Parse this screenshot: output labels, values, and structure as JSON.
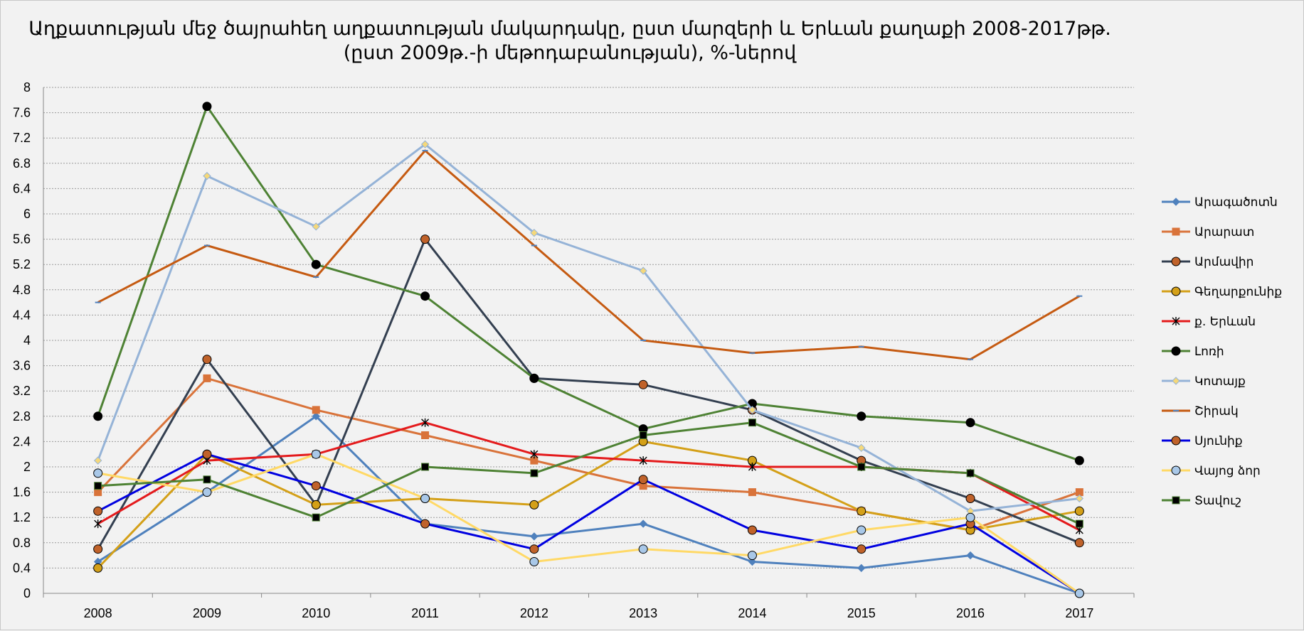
{
  "chart_data": {
    "type": "line",
    "title": "Աղքատության մեջ ծայրահեղ աղքատության մակարդակը, ըստ մարզերի և Երևան քաղաքի 2008-2017թթ.",
    "subtitle": "(ըստ 2009թ.-ի մեթոդաբանության), %-ներով",
    "x": [
      "2008",
      "2009",
      "2010",
      "2011",
      "2012",
      "2013",
      "2014",
      "2015",
      "2016",
      "2017"
    ],
    "y_ticks": [
      "0",
      "0.4",
      "0.8",
      "1.2",
      "1.6",
      "2",
      "2.4",
      "2.8",
      "3.2",
      "3.6",
      "4",
      "4.4",
      "4.8",
      "5.2",
      "5.6",
      "6",
      "6.4",
      "6.8",
      "7.2",
      "7.6",
      "8"
    ],
    "ylim": [
      0,
      8
    ],
    "grid": true,
    "legend_position": "right",
    "series": [
      {
        "name": "Արագածոտն",
        "color": "#4f81bd",
        "marker": "diamond",
        "marker_fill": "#4f81bd",
        "values": [
          0.5,
          1.6,
          2.8,
          1.1,
          0.9,
          1.1,
          0.5,
          0.4,
          0.6,
          0.0
        ]
      },
      {
        "name": "Արարատ",
        "color": "#d9733a",
        "marker": "square",
        "marker_fill": "#d9733a",
        "values": [
          1.6,
          3.4,
          2.9,
          2.5,
          2.1,
          1.7,
          1.6,
          1.3,
          1.0,
          1.6
        ]
      },
      {
        "name": "Արմավիր",
        "color": "#333f50",
        "marker": "circle",
        "marker_fill": "#c0622a",
        "values": [
          0.7,
          3.7,
          1.4,
          5.6,
          3.4,
          3.3,
          2.9,
          2.1,
          1.5,
          0.8
        ]
      },
      {
        "name": "Գեղարքունիք",
        "color": "#d4a018",
        "marker": "circle",
        "marker_fill": "#d4a018",
        "values": [
          0.4,
          2.2,
          1.4,
          1.5,
          1.4,
          2.4,
          2.1,
          1.3,
          1.0,
          1.3
        ]
      },
      {
        "name": "ք. Երևան",
        "color": "#e41a1c",
        "marker": "star",
        "marker_fill": "#000000",
        "values": [
          1.1,
          2.1,
          2.2,
          2.7,
          2.2,
          2.1,
          2.0,
          2.0,
          1.9,
          1.0
        ]
      },
      {
        "name": "Լոռի",
        "color": "#4e8234",
        "marker": "circle",
        "marker_fill": "#000000",
        "values": [
          2.8,
          7.7,
          5.2,
          4.7,
          3.4,
          2.6,
          3.0,
          2.8,
          2.7,
          2.1
        ]
      },
      {
        "name": "Կոտայք",
        "color": "#95b3d7",
        "marker": "diamond",
        "marker_fill": "#f5d87a",
        "values": [
          2.1,
          6.6,
          5.8,
          7.1,
          5.7,
          5.1,
          2.9,
          2.3,
          1.3,
          1.5
        ]
      },
      {
        "name": "Շիրակ",
        "color": "#c55a11",
        "marker": "dash",
        "marker_fill": "#4f81bd",
        "values": [
          4.6,
          5.5,
          5.0,
          7.0,
          5.5,
          4.0,
          3.8,
          3.9,
          3.7,
          4.7
        ]
      },
      {
        "name": "Սյունիք",
        "color": "#0000e0",
        "marker": "circle",
        "marker_fill": "#c0622a",
        "values": [
          1.3,
          2.2,
          1.7,
          1.1,
          0.7,
          1.8,
          1.0,
          0.7,
          1.1,
          0.0
        ]
      },
      {
        "name": "Վայոց ձոր",
        "color": "#ffd966",
        "marker": "circle",
        "marker_fill": "#a9c8e8",
        "values": [
          1.9,
          1.6,
          2.2,
          1.5,
          0.5,
          0.7,
          0.6,
          1.0,
          1.2,
          0.0
        ]
      },
      {
        "name": "Տավուշ",
        "color": "#4e8234",
        "marker": "square",
        "marker_fill": "#000000",
        "values": [
          1.7,
          1.8,
          1.2,
          2.0,
          1.9,
          2.5,
          2.7,
          2.0,
          1.9,
          1.1
        ]
      }
    ]
  }
}
